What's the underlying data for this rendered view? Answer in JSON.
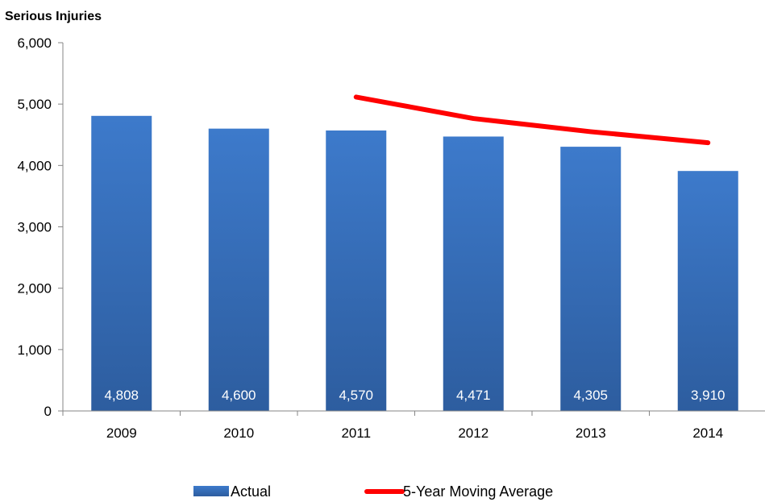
{
  "chart_data": {
    "type": "bar",
    "title": "Serious Injuries",
    "xlabel": "",
    "ylabel": "",
    "categories": [
      "2009",
      "2010",
      "2011",
      "2012",
      "2013",
      "2014"
    ],
    "ylim": [
      0,
      6000
    ],
    "yticks": [
      "0",
      "1,000",
      "2,000",
      "3,000",
      "4,000",
      "5,000",
      "6,000"
    ],
    "series": [
      {
        "name": "Actual",
        "type": "bar",
        "values": [
          4808,
          4600,
          4570,
          4471,
          4305,
          3910
        ],
        "labels": [
          "4,808",
          "4,600",
          "4,570",
          "4,471",
          "4,305",
          "3,910"
        ],
        "color": "#3a73c0"
      },
      {
        "name": "5-Year Moving Average",
        "type": "line",
        "values": [
          null,
          null,
          5115,
          4765,
          4550,
          4370
        ],
        "color": "#ff0000"
      }
    ],
    "grid": false,
    "legend": "bottom"
  }
}
